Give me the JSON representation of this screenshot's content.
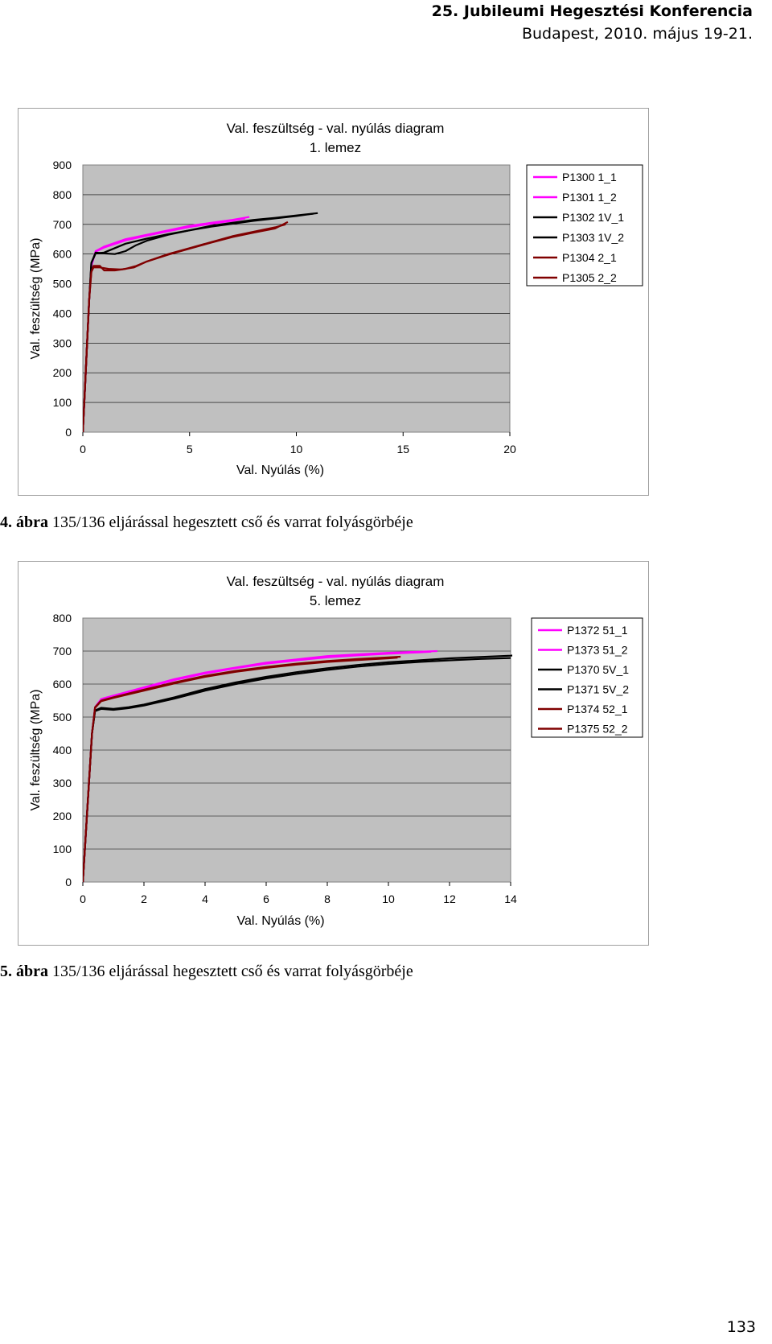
{
  "header": {
    "line1": "25. Jubileumi Hegesztési Konferencia",
    "line2": "Budapest, 2010. május 19-21."
  },
  "figures": [
    {
      "caption_num": "4. ábra",
      "caption_text": " 135/136 eljárással hegesztett cső és varrat folyásgörbéje"
    },
    {
      "caption_num": "5. ábra",
      "caption_text": " 135/136 eljárással hegesztett cső és varrat folyásgörbéje"
    }
  ],
  "page_number": "133",
  "chart_data": [
    {
      "type": "line",
      "title": "Val. feszültség - val. nyúlás diagram",
      "subtitle": "1. lemez",
      "xlabel": "Val. Nyúlás (%)",
      "ylabel": "Val. feszültség (MPa)",
      "xlim": [
        0,
        20
      ],
      "ylim": [
        0,
        900
      ],
      "xticks": [
        0,
        5,
        10,
        15,
        20
      ],
      "yticks": [
        0,
        100,
        200,
        300,
        400,
        500,
        600,
        700,
        800,
        900
      ],
      "grid": true,
      "legend_position": "right",
      "plot_background": "#c0c0c0",
      "series": [
        {
          "name": "P1300  1_1",
          "color": "#ff00ff",
          "points": [
            [
              0,
              0
            ],
            [
              0.1,
              150
            ],
            [
              0.2,
              300
            ],
            [
              0.3,
              450
            ],
            [
              0.4,
              560
            ],
            [
              0.6,
              610
            ],
            [
              1,
              625
            ],
            [
              2,
              650
            ],
            [
              3,
              665
            ],
            [
              4,
              680
            ],
            [
              5,
              695
            ],
            [
              6,
              705
            ],
            [
              7,
              715
            ],
            [
              7.8,
              725
            ]
          ]
        },
        {
          "name": "P1301  1_2",
          "color": "#ff00ff",
          "points": [
            [
              0,
              0
            ],
            [
              0.1,
              150
            ],
            [
              0.2,
              300
            ],
            [
              0.3,
              450
            ],
            [
              0.4,
              560
            ],
            [
              0.6,
              608
            ],
            [
              1,
              622
            ],
            [
              2,
              646
            ],
            [
              3,
              662
            ],
            [
              4,
              677
            ],
            [
              5,
              691
            ],
            [
              6,
              702
            ],
            [
              7,
              712
            ],
            [
              7.6,
              720
            ]
          ]
        },
        {
          "name": "P1302  1V_1",
          "color": "#000000",
          "points": [
            [
              0,
              0
            ],
            [
              0.1,
              150
            ],
            [
              0.2,
              300
            ],
            [
              0.3,
              450
            ],
            [
              0.4,
              570
            ],
            [
              0.6,
              605
            ],
            [
              1,
              602
            ],
            [
              1.5,
              600
            ],
            [
              2,
              610
            ],
            [
              2.5,
              630
            ],
            [
              3,
              645
            ],
            [
              4,
              665
            ],
            [
              5,
              680
            ],
            [
              6,
              695
            ],
            [
              7,
              705
            ],
            [
              8,
              715
            ],
            [
              9,
              722
            ],
            [
              10,
              730
            ],
            [
              11,
              738
            ]
          ]
        },
        {
          "name": "P1303  1V_2",
          "color": "#000000",
          "points": [
            [
              0,
              0
            ],
            [
              0.1,
              150
            ],
            [
              0.2,
              300
            ],
            [
              0.3,
              450
            ],
            [
              0.4,
              570
            ],
            [
              0.6,
              602
            ],
            [
              1,
              605
            ],
            [
              1.5,
              620
            ],
            [
              2,
              635
            ],
            [
              3,
              652
            ],
            [
              4,
              667
            ],
            [
              5,
              680
            ],
            [
              6,
              692
            ],
            [
              7,
              702
            ],
            [
              8,
              712
            ],
            [
              9,
              720
            ],
            [
              10,
              728
            ],
            [
              10.8,
              736
            ]
          ]
        },
        {
          "name": "P1304  2_1",
          "color": "#800000",
          "points": [
            [
              0,
              0
            ],
            [
              0.1,
              150
            ],
            [
              0.2,
              300
            ],
            [
              0.3,
              450
            ],
            [
              0.4,
              540
            ],
            [
              0.5,
              560
            ],
            [
              0.8,
              560
            ],
            [
              1,
              545
            ],
            [
              1.5,
              545
            ],
            [
              2,
              550
            ],
            [
              2.5,
              560
            ],
            [
              3,
              575
            ],
            [
              4,
              600
            ],
            [
              5,
              620
            ],
            [
              6,
              640
            ],
            [
              7,
              660
            ],
            [
              8,
              675
            ],
            [
              9,
              690
            ],
            [
              9.5,
              700
            ]
          ]
        },
        {
          "name": "P1305  2_2",
          "color": "#800000",
          "points": [
            [
              0,
              0
            ],
            [
              0.1,
              150
            ],
            [
              0.2,
              300
            ],
            [
              0.3,
              450
            ],
            [
              0.4,
              540
            ],
            [
              0.5,
              555
            ],
            [
              0.8,
              555
            ],
            [
              1.2,
              550
            ],
            [
              1.8,
              548
            ],
            [
              2.4,
              555
            ],
            [
              3,
              575
            ],
            [
              4,
              598
            ],
            [
              5,
              618
            ],
            [
              6,
              638
            ],
            [
              7,
              657
            ],
            [
              8,
              672
            ],
            [
              9,
              686
            ],
            [
              9.6,
              708
            ]
          ]
        }
      ]
    },
    {
      "type": "line",
      "title": "Val. feszültség - val. nyúlás diagram",
      "subtitle": "5. lemez",
      "xlabel": "Val. Nyúlás (%)",
      "ylabel": "Val. feszültség (MPa)",
      "xlim": [
        0,
        14
      ],
      "ylim": [
        0,
        800
      ],
      "xticks": [
        0,
        2,
        4,
        6,
        8,
        10,
        12,
        14
      ],
      "yticks": [
        0,
        100,
        200,
        300,
        400,
        500,
        600,
        700,
        800
      ],
      "grid": true,
      "legend_position": "right",
      "plot_background": "#c0c0c0",
      "series": [
        {
          "name": "P1372  51_1",
          "color": "#ff00ff",
          "points": [
            [
              0,
              0
            ],
            [
              0.1,
              150
            ],
            [
              0.2,
              300
            ],
            [
              0.3,
              450
            ],
            [
              0.4,
              530
            ],
            [
              0.6,
              555
            ],
            [
              1,
              565
            ],
            [
              2,
              590
            ],
            [
              3,
              615
            ],
            [
              4,
              635
            ],
            [
              5,
              650
            ],
            [
              6,
              665
            ],
            [
              7,
              675
            ],
            [
              8,
              685
            ],
            [
              9,
              690
            ],
            [
              10,
              695
            ],
            [
              11,
              698
            ],
            [
              11.6,
              700
            ]
          ]
        },
        {
          "name": "P1373  51_2",
          "color": "#ff00ff",
          "points": [
            [
              0,
              0
            ],
            [
              0.1,
              150
            ],
            [
              0.2,
              300
            ],
            [
              0.3,
              450
            ],
            [
              0.4,
              528
            ],
            [
              0.6,
              552
            ],
            [
              1,
              562
            ],
            [
              2,
              588
            ],
            [
              3,
              612
            ],
            [
              4,
              632
            ],
            [
              5,
              648
            ],
            [
              6,
              662
            ],
            [
              7,
              672
            ],
            [
              8,
              681
            ],
            [
              9,
              687
            ],
            [
              10,
              692
            ],
            [
              11,
              696
            ],
            [
              11.4,
              698
            ]
          ]
        },
        {
          "name": "P1370  5V_1",
          "color": "#000000",
          "points": [
            [
              0,
              0
            ],
            [
              0.1,
              150
            ],
            [
              0.2,
              300
            ],
            [
              0.3,
              450
            ],
            [
              0.4,
              520
            ],
            [
              0.6,
              528
            ],
            [
              1,
              525
            ],
            [
              1.5,
              530
            ],
            [
              2,
              538
            ],
            [
              3,
              560
            ],
            [
              4,
              585
            ],
            [
              5,
              605
            ],
            [
              6,
              622
            ],
            [
              7,
              636
            ],
            [
              8,
              648
            ],
            [
              9,
              658
            ],
            [
              10,
              666
            ],
            [
              11,
              672
            ],
            [
              12,
              678
            ],
            [
              13,
              682
            ],
            [
              14,
              686
            ],
            [
              14.2,
              688
            ]
          ]
        },
        {
          "name": "P1371  5V_2",
          "color": "#000000",
          "points": [
            [
              0,
              0
            ],
            [
              0.1,
              150
            ],
            [
              0.2,
              300
            ],
            [
              0.3,
              450
            ],
            [
              0.4,
              518
            ],
            [
              0.6,
              525
            ],
            [
              1,
              522
            ],
            [
              1.5,
              527
            ],
            [
              2,
              535
            ],
            [
              3,
              556
            ],
            [
              4,
              580
            ],
            [
              5,
              600
            ],
            [
              6,
              617
            ],
            [
              7,
              631
            ],
            [
              8,
              643
            ],
            [
              9,
              653
            ],
            [
              10,
              661
            ],
            [
              11,
              667
            ],
            [
              12,
              672
            ],
            [
              13,
              676
            ],
            [
              14,
              679
            ]
          ]
        },
        {
          "name": "P1374  52_1",
          "color": "#800000",
          "points": [
            [
              0,
              0
            ],
            [
              0.1,
              150
            ],
            [
              0.2,
              300
            ],
            [
              0.3,
              450
            ],
            [
              0.4,
              530
            ],
            [
              0.6,
              550
            ],
            [
              1,
              560
            ],
            [
              2,
              583
            ],
            [
              3,
              605
            ],
            [
              4,
              625
            ],
            [
              5,
              640
            ],
            [
              6,
              652
            ],
            [
              7,
              662
            ],
            [
              8,
              670
            ],
            [
              9,
              676
            ],
            [
              10,
              681
            ],
            [
              10.4,
              683
            ]
          ]
        },
        {
          "name": "P1375  52_2",
          "color": "#800000",
          "points": [
            [
              0,
              0
            ],
            [
              0.1,
              150
            ],
            [
              0.2,
              300
            ],
            [
              0.3,
              450
            ],
            [
              0.4,
              528
            ],
            [
              0.6,
              548
            ],
            [
              1,
              558
            ],
            [
              2,
              580
            ],
            [
              3,
              602
            ],
            [
              4,
              622
            ],
            [
              5,
              637
            ],
            [
              6,
              649
            ],
            [
              7,
              659
            ],
            [
              8,
              667
            ],
            [
              9,
              673
            ],
            [
              10,
              678
            ],
            [
              10.3,
              680
            ]
          ]
        }
      ]
    }
  ]
}
